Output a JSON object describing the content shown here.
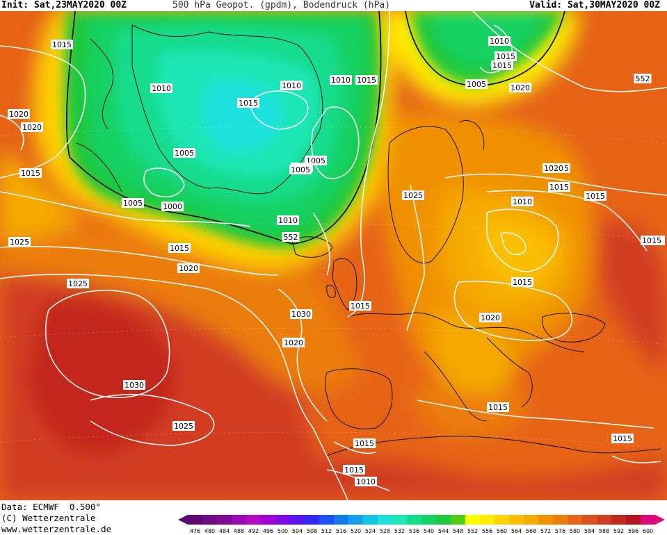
{
  "header": {
    "init": "Init: Sat,23MAY2020 00Z",
    "title": "500 hPa Geopot. (gpdm), Bodendruck (hPa)",
    "valid": "Valid: Sat,30MAY2020 00Z"
  },
  "footer": {
    "data_source": "Data: ECMWF  0.500°",
    "copyright": "(C) Wetterzentrale",
    "website": "www.wetterzentrale.de"
  },
  "colorbar": {
    "values": [
      "476",
      "480",
      "484",
      "488",
      "492",
      "496",
      "500",
      "504",
      "508",
      "512",
      "516",
      "520",
      "524",
      "528",
      "532",
      "536",
      "540",
      "544",
      "548",
      "552",
      "556",
      "560",
      "564",
      "568",
      "572",
      "576",
      "580",
      "584",
      "588",
      "592",
      "596",
      "600"
    ],
    "colors": [
      "#5a0a6e",
      "#6e0a84",
      "#82089a",
      "#9a0ab4",
      "#b40ac8",
      "#a000d2",
      "#7d0ae6",
      "#5a14f0",
      "#3228f5",
      "#1e50f5",
      "#1478f0",
      "#14a0eb",
      "#14c3e6",
      "#1ee1dc",
      "#1ee6b4",
      "#14dc8c",
      "#14d264",
      "#1ec83c",
      "#50cd14",
      "#ffff00",
      "#ffeb00",
      "#ffd200",
      "#fac000",
      "#f5aa00",
      "#f09100",
      "#eb7d0a",
      "#e66414",
      "#dc501e",
      "#d23c23",
      "#c3281e",
      "#b4141e",
      "#dc0a78"
    ]
  },
  "map_labels": {
    "isobars": [
      "1015",
      "1010",
      "1015",
      "1010",
      "1015",
      "1010",
      "1015",
      "1005",
      "1010",
      "1015",
      "552",
      "1020",
      "1020",
      "1020",
      "1015",
      "1005",
      "1005",
      "1005",
      "1005",
      "1020",
      "1015",
      "1015",
      "1025",
      "1010",
      "1015",
      "1005",
      "1000",
      "1010",
      "552",
      "1025",
      "1015",
      "1020",
      "1025",
      "1015",
      "1030",
      "1015",
      "1015",
      "1020",
      "1020",
      "1030",
      "1015",
      "1025",
      "1015",
      "1015",
      "1010",
      "1015",
      "1015"
    ]
  }
}
